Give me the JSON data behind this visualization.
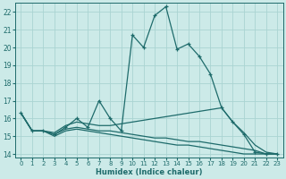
{
  "xlabel": "Humidex (Indice chaleur)",
  "bg_color": "#cceae8",
  "grid_color": "#aad4d2",
  "line_color": "#1e6b6b",
  "xlim": [
    -0.5,
    23.5
  ],
  "ylim": [
    13.8,
    22.5
  ],
  "xticks": [
    0,
    1,
    2,
    3,
    4,
    5,
    6,
    7,
    8,
    9,
    10,
    11,
    12,
    13,
    14,
    15,
    16,
    17,
    18,
    19,
    20,
    21,
    22,
    23
  ],
  "yticks": [
    14,
    15,
    16,
    17,
    18,
    19,
    20,
    21,
    22
  ],
  "series_main": [
    16.3,
    15.3,
    15.3,
    15.1,
    15.5,
    16.0,
    15.5,
    17.0,
    16.0,
    15.3,
    20.7,
    20.0,
    21.8,
    22.3,
    19.9,
    20.2,
    19.5,
    18.5,
    16.6,
    15.8,
    15.1,
    14.1,
    14.0,
    14.0
  ],
  "series_upper": [
    16.3,
    15.3,
    15.3,
    15.2,
    15.6,
    15.8,
    15.7,
    15.6,
    15.6,
    15.7,
    15.8,
    15.9,
    16.0,
    16.1,
    16.2,
    16.3,
    16.4,
    16.5,
    16.6,
    15.8,
    15.2,
    14.5,
    14.1,
    14.0
  ],
  "series_mid": [
    16.3,
    15.3,
    15.3,
    15.1,
    15.4,
    15.5,
    15.4,
    15.3,
    15.3,
    15.2,
    15.1,
    15.0,
    14.9,
    14.9,
    14.8,
    14.7,
    14.7,
    14.6,
    14.5,
    14.4,
    14.3,
    14.2,
    14.0,
    14.0
  ],
  "series_lower": [
    16.3,
    15.3,
    15.3,
    15.0,
    15.3,
    15.4,
    15.3,
    15.2,
    15.1,
    15.0,
    14.9,
    14.8,
    14.7,
    14.6,
    14.5,
    14.5,
    14.4,
    14.3,
    14.2,
    14.1,
    14.0,
    14.0,
    14.0,
    14.0
  ]
}
